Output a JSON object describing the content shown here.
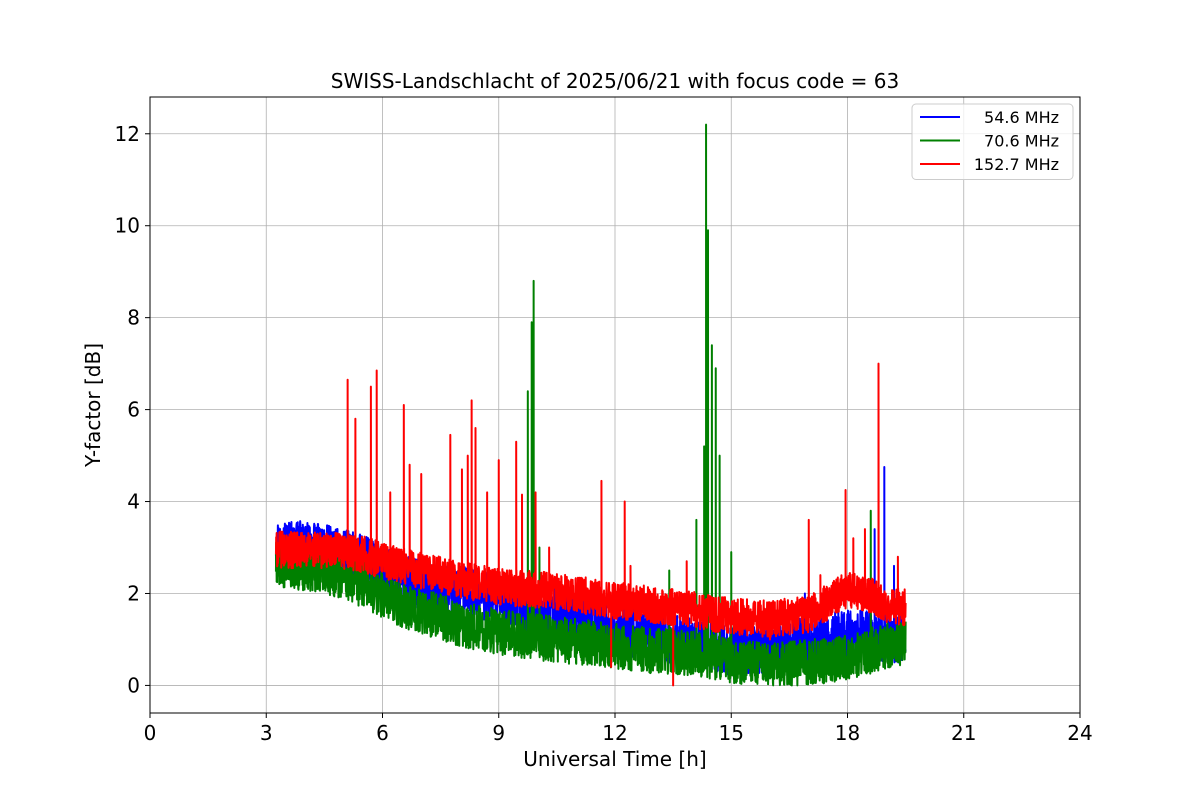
{
  "chart_data": {
    "type": "line",
    "title": "SWISS-Landschlacht of 2025/06/21 with focus code = 63",
    "xlabel": "Universal Time [h]",
    "ylabel": "Y-factor [dB]",
    "xlim": [
      0,
      24
    ],
    "ylim": [
      -0.6,
      12.8
    ],
    "xticks": [
      0,
      3,
      6,
      9,
      12,
      15,
      18,
      21,
      24
    ],
    "yticks": [
      0,
      2,
      4,
      6,
      8,
      10,
      12
    ],
    "grid": true,
    "legend_position": "upper right",
    "series": [
      {
        "name": "54.6 MHz",
        "color": "#0000ff",
        "noise": 0.55,
        "trend": [
          [
            3.25,
            3.1
          ],
          [
            4.5,
            2.95
          ],
          [
            5.5,
            2.75
          ],
          [
            6.5,
            2.3
          ],
          [
            8.0,
            2.05
          ],
          [
            9.0,
            1.85
          ],
          [
            10.5,
            1.55
          ],
          [
            12.0,
            1.25
          ],
          [
            13.0,
            1.05
          ],
          [
            14.0,
            0.95
          ],
          [
            15.0,
            0.75
          ],
          [
            16.0,
            0.8
          ],
          [
            17.0,
            0.95
          ],
          [
            18.0,
            1.1
          ],
          [
            19.0,
            1.05
          ],
          [
            19.5,
            1.0
          ]
        ],
        "spikes": [
          [
            9.9,
            2.9
          ],
          [
            16.9,
            2.0
          ],
          [
            18.7,
            3.4
          ],
          [
            18.95,
            4.75
          ],
          [
            19.2,
            2.6
          ]
        ]
      },
      {
        "name": "70.6 MHz",
        "color": "#008000",
        "noise": 0.5,
        "trend": [
          [
            3.25,
            2.65
          ],
          [
            4.5,
            2.5
          ],
          [
            5.5,
            2.2
          ],
          [
            6.5,
            1.75
          ],
          [
            8.0,
            1.35
          ],
          [
            9.0,
            1.15
          ],
          [
            10.5,
            1.0
          ],
          [
            12.0,
            0.85
          ],
          [
            13.0,
            0.75
          ],
          [
            14.0,
            0.7
          ],
          [
            15.0,
            0.55
          ],
          [
            16.0,
            0.45
          ],
          [
            17.0,
            0.5
          ],
          [
            18.0,
            0.6
          ],
          [
            19.0,
            0.85
          ],
          [
            19.5,
            0.95
          ]
        ],
        "spikes": [
          [
            9.75,
            6.4
          ],
          [
            9.85,
            7.9
          ],
          [
            9.9,
            8.8
          ],
          [
            10.05,
            3.0
          ],
          [
            13.4,
            2.5
          ],
          [
            14.1,
            3.6
          ],
          [
            14.3,
            5.2
          ],
          [
            14.35,
            12.2
          ],
          [
            14.4,
            9.9
          ],
          [
            14.5,
            7.4
          ],
          [
            14.6,
            6.9
          ],
          [
            14.7,
            5.0
          ],
          [
            15.0,
            2.9
          ],
          [
            18.6,
            3.8
          ]
        ]
      },
      {
        "name": "152.7 MHz",
        "color": "#ff0000",
        "noise": 0.4,
        "trend": [
          [
            3.25,
            2.95
          ],
          [
            4.5,
            2.95
          ],
          [
            5.5,
            2.85
          ],
          [
            6.5,
            2.6
          ],
          [
            8.0,
            2.3
          ],
          [
            9.0,
            2.15
          ],
          [
            10.5,
            2.05
          ],
          [
            12.0,
            1.85
          ],
          [
            13.0,
            1.75
          ],
          [
            14.0,
            1.65
          ],
          [
            15.0,
            1.5
          ],
          [
            16.0,
            1.45
          ],
          [
            17.0,
            1.55
          ],
          [
            18.0,
            2.1
          ],
          [
            18.5,
            2.0
          ],
          [
            19.0,
            1.75
          ],
          [
            19.5,
            1.7
          ]
        ],
        "spikes": [
          [
            5.1,
            6.65
          ],
          [
            5.3,
            5.8
          ],
          [
            5.7,
            6.5
          ],
          [
            5.85,
            6.85
          ],
          [
            6.2,
            4.2
          ],
          [
            6.55,
            6.1
          ],
          [
            6.7,
            4.8
          ],
          [
            7.0,
            4.6
          ],
          [
            7.75,
            5.45
          ],
          [
            8.05,
            4.7
          ],
          [
            8.2,
            5.0
          ],
          [
            8.3,
            6.2
          ],
          [
            8.4,
            5.6
          ],
          [
            8.7,
            4.2
          ],
          [
            9.0,
            4.9
          ],
          [
            9.45,
            5.3
          ],
          [
            9.6,
            4.15
          ],
          [
            9.95,
            4.2
          ],
          [
            10.3,
            3.0
          ],
          [
            11.65,
            4.45
          ],
          [
            12.25,
            4.0
          ],
          [
            12.4,
            2.6
          ],
          [
            13.85,
            2.7
          ],
          [
            17.0,
            3.6
          ],
          [
            17.3,
            2.4
          ],
          [
            17.95,
            4.25
          ],
          [
            18.15,
            3.2
          ],
          [
            18.45,
            3.4
          ],
          [
            18.8,
            7.0
          ],
          [
            19.3,
            2.8
          ]
        ],
        "dips": [
          [
            11.9,
            0.4
          ],
          [
            13.5,
            0.0
          ],
          [
            16.0,
            1.0
          ]
        ]
      }
    ]
  }
}
